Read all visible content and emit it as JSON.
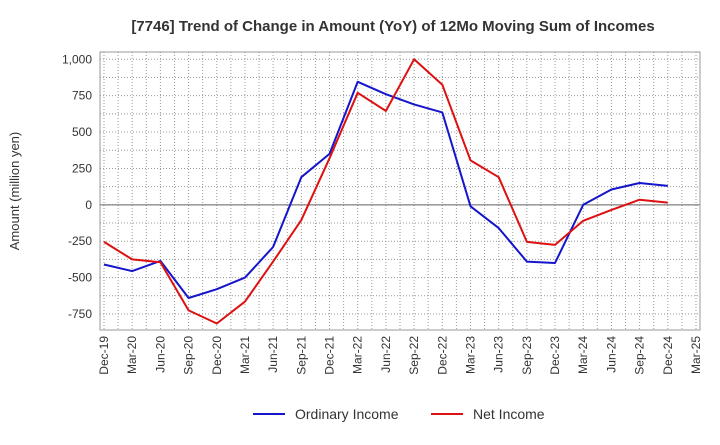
{
  "chart_data": {
    "type": "line",
    "title": "[7746]  Trend of Change in Amount (YoY) of 12Mo Moving Sum of Incomes",
    "xlabel": "",
    "ylabel": "Amount (million yen)",
    "x_ticks": [
      "Dec-19",
      "Mar-20",
      "Jun-20",
      "Sep-20",
      "Dec-20",
      "Mar-21",
      "Jun-21",
      "Sep-21",
      "Dec-21",
      "Mar-22",
      "Jun-22",
      "Sep-22",
      "Dec-22",
      "Mar-23",
      "Jun-23",
      "Sep-23",
      "Dec-23",
      "Mar-24",
      "Jun-24",
      "Sep-24",
      "Dec-24",
      "Mar-25"
    ],
    "ylim": [
      -860,
      1050
    ],
    "y_ticks": [
      -750,
      -500,
      -250,
      0,
      250,
      500,
      750,
      1000
    ],
    "y_tick_labels": [
      "-750",
      "-500",
      "-250",
      "0",
      "250",
      "500",
      "750",
      "1,000"
    ],
    "grid": true,
    "legend_position": "bottom",
    "series": [
      {
        "name": "Ordinary Income",
        "color": "#1515cc",
        "x": [
          "Dec-19",
          "Mar-20",
          "Jun-20",
          "Sep-20",
          "Dec-20",
          "Mar-21",
          "Jun-21",
          "Sep-21",
          "Dec-21",
          "Mar-22",
          "Jun-22",
          "Sep-22",
          "Dec-22",
          "Mar-23",
          "Jun-23",
          "Sep-23",
          "Dec-23",
          "Mar-24",
          "Jun-24",
          "Sep-24",
          "Dec-24"
        ],
        "values": [
          -410,
          -455,
          -385,
          -640,
          -580,
          -500,
          -290,
          190,
          350,
          845,
          760,
          690,
          635,
          -10,
          -160,
          -390,
          -400,
          0,
          105,
          150,
          130
        ]
      },
      {
        "name": "Net Income",
        "color": "#dd1111",
        "x": [
          "Dec-19",
          "Mar-20",
          "Jun-20",
          "Sep-20",
          "Dec-20",
          "Mar-21",
          "Jun-21",
          "Sep-21",
          "Dec-21",
          "Mar-22",
          "Jun-22",
          "Sep-22",
          "Dec-22",
          "Mar-23",
          "Jun-23",
          "Sep-23",
          "Dec-23",
          "Mar-24",
          "Jun-24",
          "Sep-24",
          "Dec-24"
        ],
        "values": [
          -255,
          -375,
          -395,
          -725,
          -815,
          -665,
          -390,
          -105,
          320,
          770,
          645,
          1000,
          825,
          305,
          190,
          -255,
          -275,
          -110,
          -35,
          35,
          15
        ]
      }
    ]
  }
}
